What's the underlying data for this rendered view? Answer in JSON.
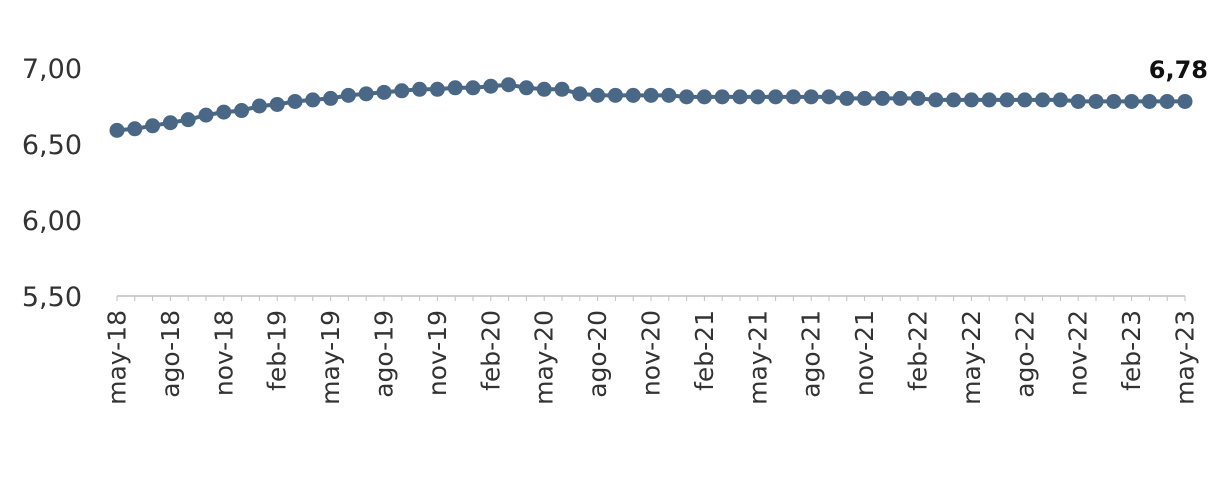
{
  "chart_data": {
    "type": "line",
    "title": "",
    "xlabel": "",
    "ylabel": "",
    "ylim": [
      5.5,
      7.0
    ],
    "yticks": [
      "7,00",
      "6,50",
      "6,00",
      "5,50"
    ],
    "ytick_values": [
      7.0,
      6.5,
      6.0,
      5.5
    ],
    "xtick_labels": [
      "may-18",
      "ago-18",
      "nov-18",
      "feb-19",
      "may-19",
      "ago-19",
      "nov-19",
      "feb-20",
      "may-20",
      "ago-20",
      "nov-20",
      "feb-21",
      "may-21",
      "ago-21",
      "nov-21",
      "feb-22",
      "may-22",
      "ago-22",
      "nov-22",
      "feb-23",
      "may-23"
    ],
    "grid": false,
    "legend": "none",
    "series_color": "#4a6785",
    "last_value_label": "6,78",
    "series": [
      {
        "values": [
          6.59,
          6.6,
          6.62,
          6.64,
          6.66,
          6.69,
          6.71,
          6.72,
          6.75,
          6.76,
          6.78,
          6.79,
          6.8,
          6.82,
          6.83,
          6.84,
          6.85,
          6.86,
          6.86,
          6.87,
          6.87,
          6.88,
          6.89,
          6.87,
          6.86,
          6.86,
          6.83,
          6.82,
          6.82,
          6.82,
          6.82,
          6.82,
          6.81,
          6.81,
          6.81,
          6.81,
          6.81,
          6.81,
          6.81,
          6.81,
          6.81,
          6.8,
          6.8,
          6.8,
          6.8,
          6.8,
          6.79,
          6.79,
          6.79,
          6.79,
          6.79,
          6.79,
          6.79,
          6.79,
          6.78,
          6.78,
          6.78,
          6.78,
          6.78,
          6.78,
          6.78
        ]
      }
    ]
  }
}
